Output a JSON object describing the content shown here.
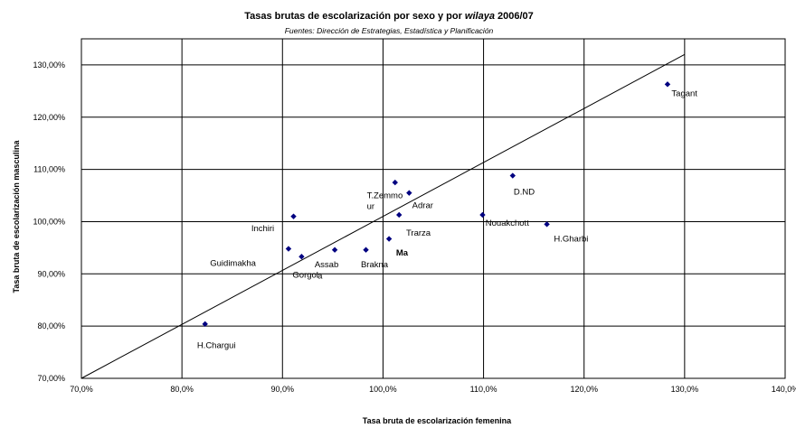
{
  "chart_data": {
    "type": "scatter",
    "title_main": "Tasas brutas de escolarización por sexo y por ",
    "title_em": "wilaya",
    "title_tail": " 2006/07",
    "subtitle": "Fuentes: Dirección de Estrategias, Estadística y Planificación",
    "xlabel": "Tasa bruta de escolarización femenina",
    "ylabel": "Tasa bruta de escolarización masculina",
    "xlim": [
      70,
      140
    ],
    "ylim": [
      70,
      135
    ],
    "x_ticks": [
      70,
      80,
      90,
      100,
      110,
      120,
      130,
      140
    ],
    "y_ticks": [
      70,
      80,
      90,
      100,
      110,
      120,
      130
    ],
    "x_tick_labels": [
      "70,0%",
      "80,0%",
      "90,0%",
      "100,0%",
      "110,0%",
      "120,0%",
      "130,0%",
      "140,0%"
    ],
    "y_tick_labels": [
      "70,00%",
      "80,00%",
      "90,00%",
      "100,00%",
      "110,00%",
      "120,00%",
      "130,00%"
    ],
    "grid": true,
    "marker_color": "#000080",
    "reference_line": {
      "x": [
        70,
        130
      ],
      "y": [
        70,
        132
      ]
    },
    "points": [
      {
        "x": 128.3,
        "y": 126.3
      },
      {
        "x": 112.9,
        "y": 108.8
      },
      {
        "x": 101.2,
        "y": 107.5
      },
      {
        "x": 102.6,
        "y": 105.5
      },
      {
        "x": 101.6,
        "y": 101.3
      },
      {
        "x": 109.9,
        "y": 101.3
      },
      {
        "x": 116.3,
        "y": 99.5
      },
      {
        "x": 91.1,
        "y": 101.0
      },
      {
        "x": 100.6,
        "y": 96.7
      },
      {
        "x": 90.6,
        "y": 94.8
      },
      {
        "x": 91.9,
        "y": 93.3
      },
      {
        "x": 95.2,
        "y": 94.6
      },
      {
        "x": 98.3,
        "y": 94.6
      },
      {
        "x": 82.3,
        "y": 80.4
      }
    ],
    "labels": [
      {
        "text": "Tagant",
        "x": 128.7,
        "y": 124.0
      },
      {
        "text": "D.ND",
        "x": 113.0,
        "y": 105.2
      },
      {
        "text": "T.Zemmo",
        "x": 98.4,
        "y": 104.5
      },
      {
        "text": "ur",
        "x": 98.4,
        "y": 102.4
      },
      {
        "text": "Adrar",
        "x": 102.9,
        "y": 102.6
      },
      {
        "text": "Nouakchott",
        "x": 110.2,
        "y": 99.2
      },
      {
        "text": "H.Gharbi",
        "x": 117.0,
        "y": 96.2
      },
      {
        "text": "Inchiri",
        "x": 86.9,
        "y": 98.2
      },
      {
        "text": "Trarza",
        "x": 102.3,
        "y": 97.3
      },
      {
        "text": "Ma",
        "x": 101.3,
        "y": 93.5,
        "bold": true
      },
      {
        "text": "Guidimakha",
        "x": 82.8,
        "y": 91.5
      },
      {
        "text": "Assab",
        "x": 93.2,
        "y": 91.3
      },
      {
        "text": "Brakna",
        "x": 97.8,
        "y": 91.3
      },
      {
        "text": "Gorgol",
        "x": 91.0,
        "y": 89.3
      },
      {
        "text": "a",
        "x": 93.5,
        "y": 89.1
      },
      {
        "text": "H.Chargui",
        "x": 81.5,
        "y": 75.8
      }
    ]
  }
}
